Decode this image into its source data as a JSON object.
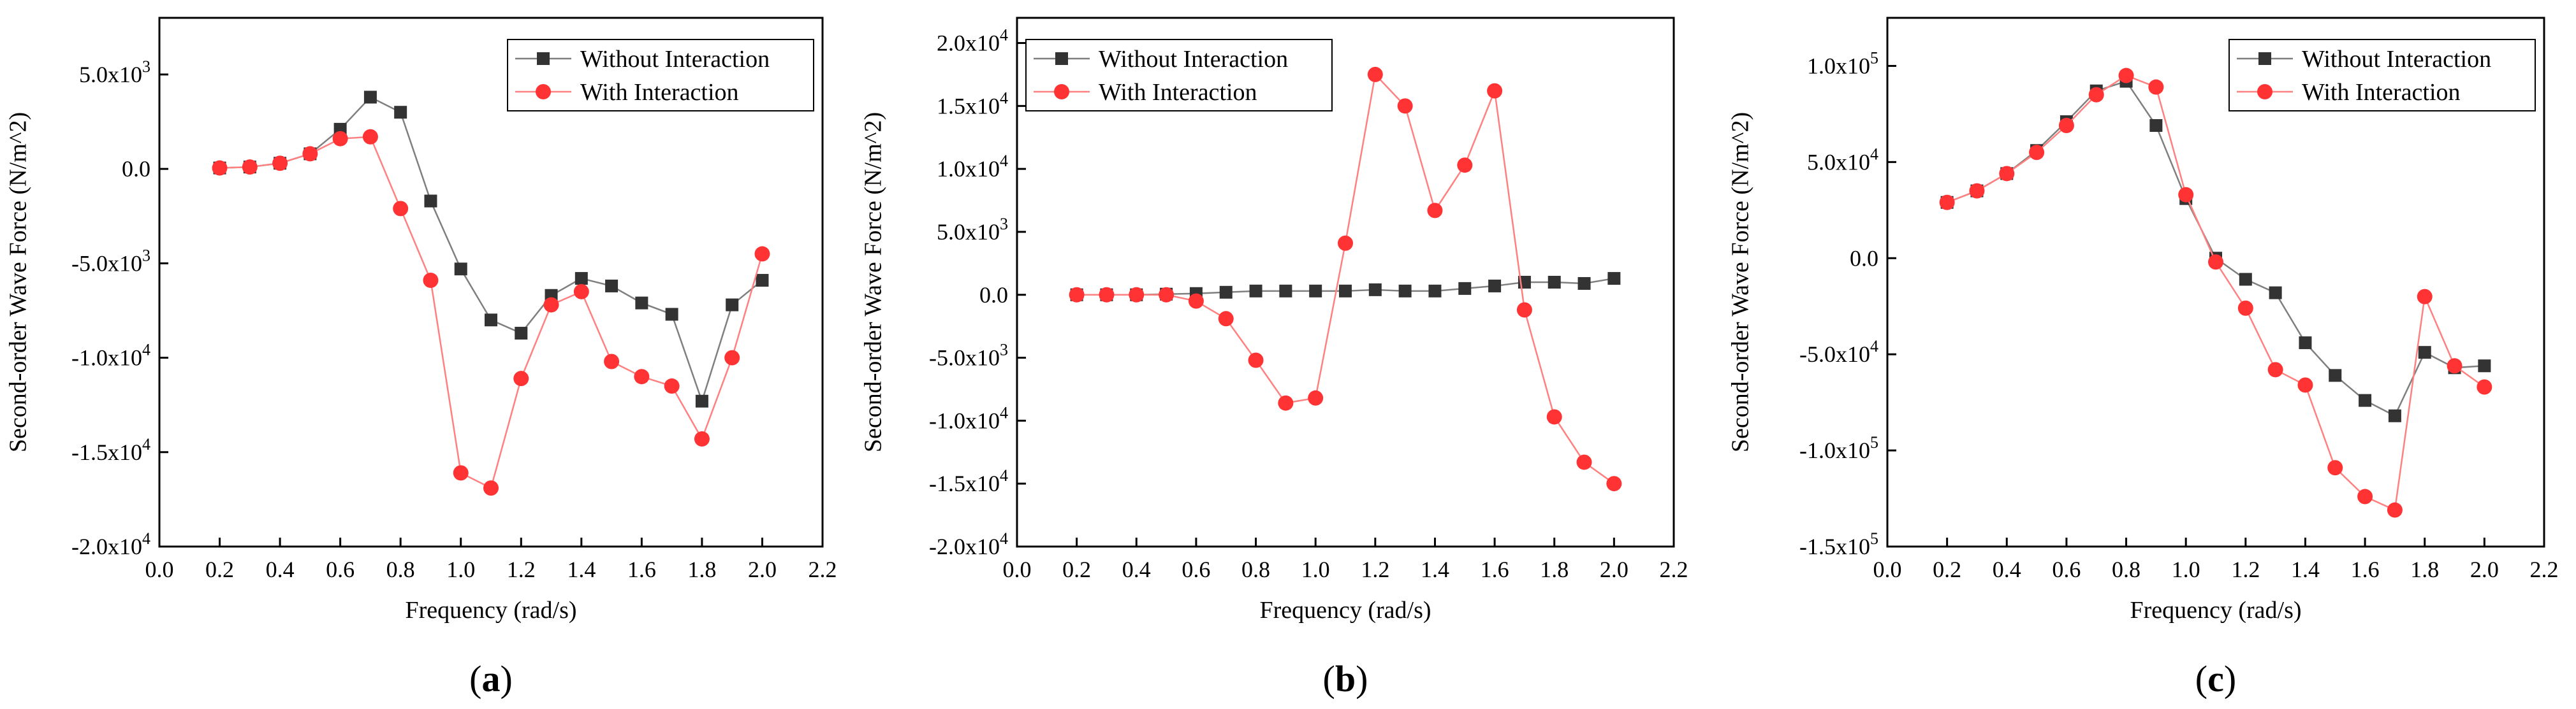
{
  "colors": {
    "without": "#333333",
    "with": "#ff3333",
    "without_line": "#7f7f7f",
    "with_line": "#ff8080"
  },
  "chart_data": [
    {
      "type": "line",
      "panel_label": "a",
      "title": "",
      "xlabel": "Frequency (rad/s)",
      "ylabel": "Second-order Wave Force (N/m^2)",
      "xlim": [
        0.0,
        2.2
      ],
      "ylim": [
        -20000,
        8000
      ],
      "x_ticks": [
        0.0,
        0.2,
        0.4,
        0.6,
        0.8,
        1.0,
        1.2,
        1.4,
        1.6,
        1.8,
        2.0,
        2.2
      ],
      "x_tick_labels": [
        "0.0",
        "0.2",
        "0.4",
        "0.6",
        "0.8",
        "1.0",
        "1.2",
        "1.4",
        "1.6",
        "1.8",
        "2.0",
        "2.2"
      ],
      "y_ticks": [
        {
          "value": 5000,
          "mant": "5.0x10",
          "exp": "3"
        },
        {
          "value": 0,
          "mant": "0.0",
          "exp": ""
        },
        {
          "value": -5000,
          "mant": "-5.0x10",
          "exp": "3"
        },
        {
          "value": -10000,
          "mant": "-1.0x10",
          "exp": "4"
        },
        {
          "value": -15000,
          "mant": "-1.5x10",
          "exp": "4"
        },
        {
          "value": -20000,
          "mant": "-2.0x10",
          "exp": "4"
        }
      ],
      "legend": {
        "position": "top-right"
      },
      "x": [
        0.2,
        0.3,
        0.4,
        0.5,
        0.6,
        0.7,
        0.8,
        0.9,
        1.0,
        1.1,
        1.2,
        1.3,
        1.4,
        1.5,
        1.6,
        1.7,
        1.8,
        1.9,
        2.0
      ],
      "series": [
        {
          "name": "Without Interaction",
          "marker": "square",
          "values": [
            50,
            100,
            300,
            800,
            2100,
            3800,
            3000,
            -1700,
            -5300,
            -8000,
            -8700,
            -6700,
            -5800,
            -6200,
            -7100,
            -7700,
            -12300,
            -7200,
            -5900
          ]
        },
        {
          "name": "With Interaction",
          "marker": "circle",
          "values": [
            50,
            100,
            300,
            800,
            1600,
            1700,
            -2100,
            -5900,
            -16100,
            -16900,
            -11100,
            -7200,
            -6500,
            -10200,
            -11000,
            -11500,
            -14300,
            -10000,
            -4500
          ]
        }
      ]
    },
    {
      "type": "line",
      "panel_label": "b",
      "title": "",
      "xlabel": "Frequency (rad/s)",
      "ylabel": "Second-order Wave Force (N/m^2)",
      "xlim": [
        0.0,
        2.2
      ],
      "ylim": [
        -20000,
        22000
      ],
      "x_ticks": [
        0.0,
        0.2,
        0.4,
        0.6,
        0.8,
        1.0,
        1.2,
        1.4,
        1.6,
        1.8,
        2.0,
        2.2
      ],
      "x_tick_labels": [
        "0.0",
        "0.2",
        "0.4",
        "0.6",
        "0.8",
        "1.0",
        "1.2",
        "1.4",
        "1.6",
        "1.8",
        "2.0",
        "2.2"
      ],
      "y_ticks": [
        {
          "value": 20000,
          "mant": "2.0x10",
          "exp": "4"
        },
        {
          "value": 15000,
          "mant": "1.5x10",
          "exp": "4"
        },
        {
          "value": 10000,
          "mant": "1.0x10",
          "exp": "4"
        },
        {
          "value": 5000,
          "mant": "5.0x10",
          "exp": "3"
        },
        {
          "value": 0,
          "mant": "0.0",
          "exp": ""
        },
        {
          "value": -5000,
          "mant": "-5.0x10",
          "exp": "3"
        },
        {
          "value": -10000,
          "mant": "-1.0x10",
          "exp": "4"
        },
        {
          "value": -15000,
          "mant": "-1.5x10",
          "exp": "4"
        },
        {
          "value": -20000,
          "mant": "-2.0x10",
          "exp": "4"
        }
      ],
      "legend": {
        "position": "top-left"
      },
      "x": [
        0.2,
        0.3,
        0.4,
        0.5,
        0.6,
        0.7,
        0.8,
        0.9,
        1.0,
        1.1,
        1.2,
        1.3,
        1.4,
        1.5,
        1.6,
        1.7,
        1.8,
        1.9,
        2.0
      ],
      "series": [
        {
          "name": "Without Interaction",
          "marker": "square",
          "values": [
            0,
            0,
            0,
            50,
            100,
            200,
            300,
            300,
            300,
            300,
            400,
            300,
            300,
            500,
            700,
            1000,
            1000,
            900,
            1300
          ]
        },
        {
          "name": "With Interaction",
          "marker": "circle",
          "values": [
            0,
            0,
            0,
            0,
            -500,
            -1900,
            -5200,
            -8600,
            -8200,
            4100,
            17500,
            15000,
            6700,
            10300,
            16200,
            -1200,
            -9700,
            -13300,
            -15000
          ]
        }
      ]
    },
    {
      "type": "line",
      "panel_label": "c",
      "title": "",
      "xlabel": "Frequency (rad/s)",
      "ylabel": "Second-order Wave Force (N/m^2)",
      "xlim": [
        0.0,
        2.2
      ],
      "ylim": [
        -150000,
        125000
      ],
      "x_ticks": [
        0.0,
        0.2,
        0.4,
        0.6,
        0.8,
        1.0,
        1.2,
        1.4,
        1.6,
        1.8,
        2.0,
        2.2
      ],
      "x_tick_labels": [
        "0.0",
        "0.2",
        "0.4",
        "0.6",
        "0.8",
        "1.0",
        "1.2",
        "1.4",
        "1.6",
        "1.8",
        "2.0",
        "2.2"
      ],
      "y_ticks": [
        {
          "value": 100000,
          "mant": "1.0x10",
          "exp": "5"
        },
        {
          "value": 50000,
          "mant": "5.0x10",
          "exp": "4"
        },
        {
          "value": 0,
          "mant": "0.0",
          "exp": ""
        },
        {
          "value": -50000,
          "mant": "-5.0x10",
          "exp": "4"
        },
        {
          "value": -100000,
          "mant": "-1.0x10",
          "exp": "5"
        },
        {
          "value": -150000,
          "mant": "-1.5x10",
          "exp": "5"
        }
      ],
      "legend": {
        "position": "top-right"
      },
      "x": [
        0.2,
        0.3,
        0.4,
        0.5,
        0.6,
        0.7,
        0.8,
        0.9,
        1.0,
        1.1,
        1.2,
        1.3,
        1.4,
        1.5,
        1.6,
        1.7,
        1.8,
        1.9,
        2.0
      ],
      "series": [
        {
          "name": "Without Interaction",
          "marker": "square",
          "values": [
            29000,
            35000,
            44000,
            56000,
            71000,
            87000,
            92000,
            69000,
            31000,
            0,
            -11000,
            -18000,
            -44000,
            -61000,
            -74000,
            -82000,
            -49000,
            -57000,
            -56000
          ]
        },
        {
          "name": "With Interaction",
          "marker": "circle",
          "values": [
            29000,
            35000,
            44000,
            55000,
            69000,
            85000,
            95000,
            89000,
            33000,
            -2000,
            -26000,
            -58000,
            -66000,
            -109000,
            -124000,
            -131000,
            -20000,
            -56000,
            -67000
          ]
        }
      ]
    }
  ]
}
